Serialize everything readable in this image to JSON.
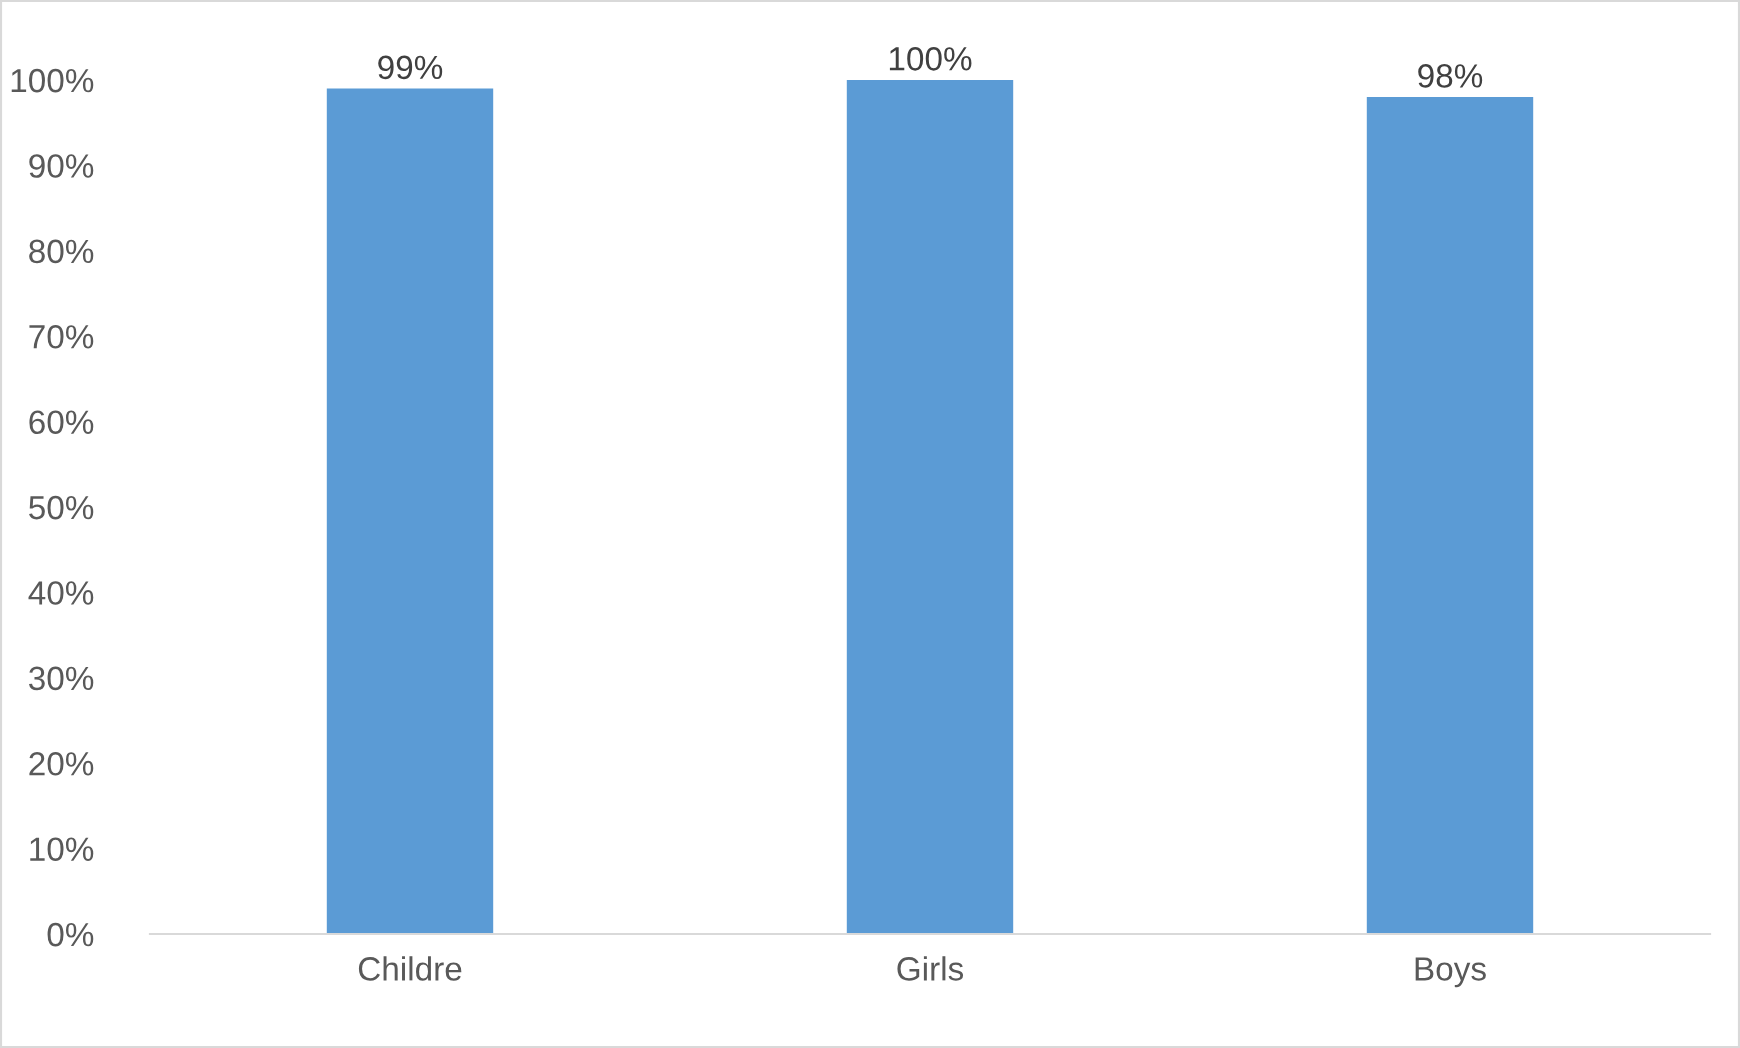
{
  "chart_data": {
    "type": "bar",
    "categories": [
      "Childre",
      "Girls",
      "Boys"
    ],
    "values": [
      99,
      100,
      98
    ],
    "value_labels": [
      "99%",
      "100%",
      "98%"
    ],
    "color": "#5b9bd5",
    "ylim": [
      0,
      100
    ],
    "yticks": [
      {
        "value": 0,
        "label": "0%"
      },
      {
        "value": 10,
        "label": "10%"
      },
      {
        "value": 20,
        "label": "20%"
      },
      {
        "value": 30,
        "label": "30%"
      },
      {
        "value": 40,
        "label": "40%"
      },
      {
        "value": 50,
        "label": "50%"
      },
      {
        "value": 60,
        "label": "60%"
      },
      {
        "value": 70,
        "label": "70%"
      },
      {
        "value": 80,
        "label": "80%"
      },
      {
        "value": 90,
        "label": "90%"
      },
      {
        "value": 100,
        "label": "100%"
      }
    ],
    "grid": false,
    "legend": false
  }
}
